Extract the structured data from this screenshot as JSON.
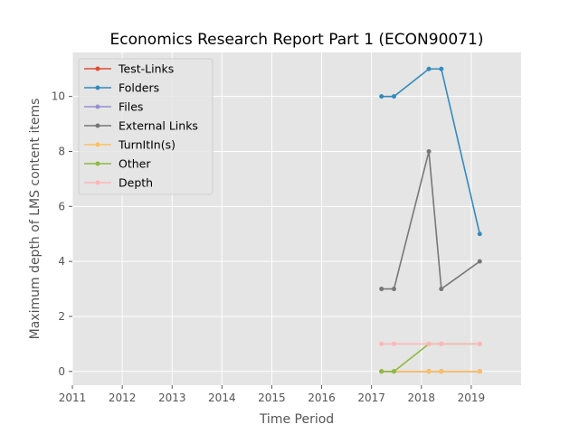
{
  "chart_data": {
    "type": "line",
    "title": "Economics Research Report Part 1 (ECON90071)",
    "xlabel": "Time Period",
    "ylabel": "Maximum depth of LMS content items",
    "xlim": [
      2011,
      2020
    ],
    "ylim": [
      -0.5,
      11.6
    ],
    "xticks": [
      "2011",
      "2012",
      "2013",
      "2014",
      "2015",
      "2016",
      "2017",
      "2018",
      "2019"
    ],
    "yticks": [
      "0",
      "2",
      "4",
      "6",
      "8",
      "10"
    ],
    "grid": true,
    "legend_position": "top-left",
    "x": [
      2017.2,
      2017.45,
      2018.15,
      2018.4,
      2019.17
    ],
    "series": [
      {
        "name": "Test-Links",
        "color": "#e24a33",
        "values": [
          0,
          0,
          0,
          0,
          0
        ]
      },
      {
        "name": "Folders",
        "color": "#348abd",
        "values": [
          10,
          10,
          11,
          11,
          5
        ]
      },
      {
        "name": "Files",
        "color": "#988ed5",
        "values": [
          0,
          0,
          0,
          0,
          0
        ]
      },
      {
        "name": "External Links",
        "color": "#777777",
        "values": [
          3,
          3,
          8,
          3,
          4
        ]
      },
      {
        "name": "TurnItIn(s)",
        "color": "#fbc15e",
        "values": [
          0,
          0,
          0,
          0,
          0
        ]
      },
      {
        "name": "Other",
        "color": "#8eba42",
        "values": [
          0,
          0,
          1,
          1,
          1
        ]
      },
      {
        "name": "Depth",
        "color": "#ffb5b8",
        "values": [
          1,
          1,
          1,
          1,
          1
        ]
      }
    ]
  }
}
